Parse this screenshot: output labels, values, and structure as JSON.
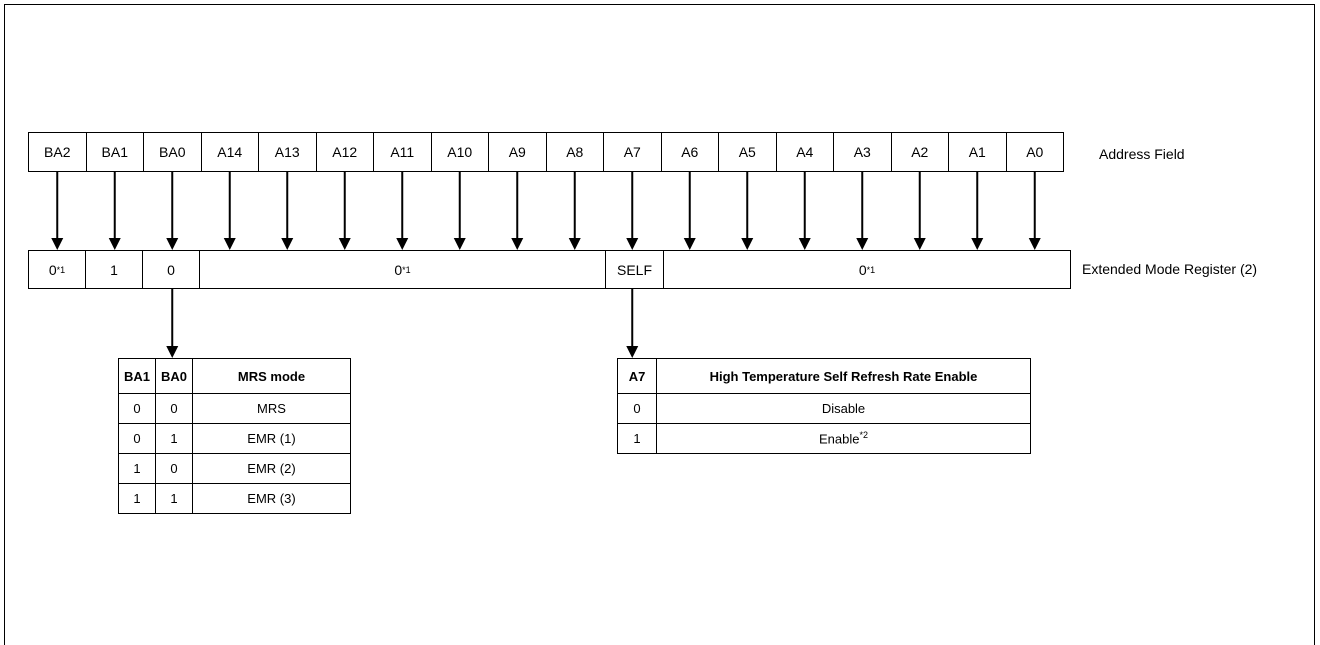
{
  "address_field": {
    "label": "Address Field",
    "bits": [
      "BA2",
      "BA1",
      "BA0",
      "A14",
      "A13",
      "A12",
      "A11",
      "A10",
      "A9",
      "A8",
      "A7",
      "A6",
      "A5",
      "A4",
      "A3",
      "A2",
      "A1",
      "A0"
    ]
  },
  "register": {
    "label": "Extended Mode Register (2)",
    "fields": [
      {
        "text": "0",
        "sup": "*1"
      },
      {
        "text": "1",
        "sup": ""
      },
      {
        "text": "0",
        "sup": ""
      },
      {
        "text": "0",
        "sup": "*1"
      },
      {
        "text": "SELF",
        "sup": ""
      },
      {
        "text": "0",
        "sup": "*1"
      }
    ]
  },
  "mrs_table": {
    "headers": [
      "BA1",
      "BA0",
      "MRS mode"
    ],
    "rows": [
      [
        "0",
        "0",
        "MRS"
      ],
      [
        "0",
        "1",
        "EMR (1)"
      ],
      [
        "1",
        "0",
        "EMR (2)"
      ],
      [
        "1",
        "1",
        "EMR (3)"
      ]
    ]
  },
  "a7_table": {
    "headers": [
      "A7",
      "High Temperature Self Refresh Rate Enable"
    ],
    "rows": [
      {
        "bit": "0",
        "value": "Disable",
        "sup": ""
      },
      {
        "bit": "1",
        "value": "Enable",
        "sup": "*2"
      }
    ]
  }
}
